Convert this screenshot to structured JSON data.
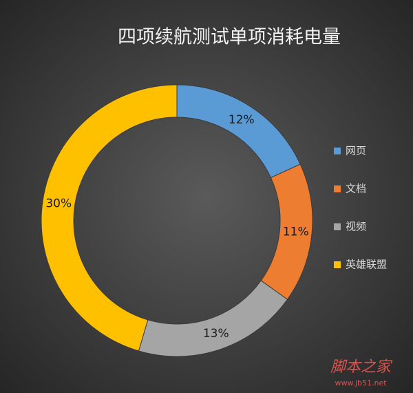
{
  "chart_data": {
    "type": "pie",
    "donut": true,
    "title": "四项续航测试单项消耗电量",
    "categories": [
      "网页",
      "文档",
      "视频",
      "英雄联盟"
    ],
    "values": [
      12,
      11,
      13,
      30
    ],
    "value_labels": [
      "12%",
      "11%",
      "13%",
      "30%"
    ],
    "colors": [
      "#5b9bd5",
      "#ed7d31",
      "#a5a5a5",
      "#ffc000"
    ],
    "legend": "right",
    "annotations": [
      "脚本之家",
      "www.jb51.net"
    ]
  }
}
